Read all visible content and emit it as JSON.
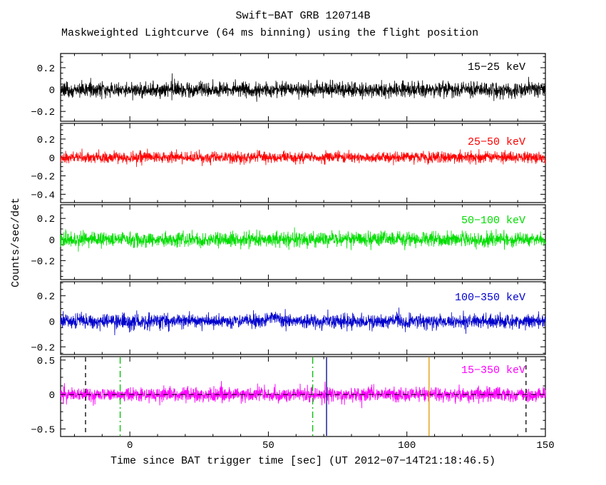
{
  "chart_data": {
    "type": "line",
    "title": "Swift−BAT GRB 120714B",
    "subtitle": "Maskweighted Lightcurve (64 ms binning) using the flight position",
    "xlabel": "Time since BAT trigger time [sec] (UT 2012−07−14T21:18:46.5)",
    "ylabel": "Counts/sec/det",
    "x_range": [
      -25,
      150
    ],
    "x_ticks": [
      0,
      50,
      100,
      150
    ],
    "x_minor_step": 10,
    "bin_seconds": 0.064,
    "grid": false,
    "legend_position": "inside-right-per-panel",
    "panels": [
      {
        "label": "15−25 keV",
        "color": "#000000",
        "ylim": [
          -0.29,
          0.33
        ],
        "yticks": [
          0.2,
          0,
          -0.2
        ],
        "mean": 0,
        "noise_sigma": 0.034
      },
      {
        "label": "25−50 keV",
        "color": "#ff0000",
        "ylim": [
          -0.49,
          0.37
        ],
        "yticks": [
          0.2,
          0,
          -0.2,
          -0.4
        ],
        "mean": 0,
        "noise_sigma": 0.03
      },
      {
        "label": "50−100 keV",
        "color": "#00dd00",
        "ylim": [
          -0.38,
          0.33
        ],
        "yticks": [
          0.2,
          0,
          -0.2
        ],
        "mean": 0,
        "noise_sigma": 0.034
      },
      {
        "label": "100−350 keV",
        "color": "#0000cc",
        "ylim": [
          -0.26,
          0.31
        ],
        "yticks": [
          0.2,
          0,
          -0.2
        ],
        "mean": 0,
        "noise_sigma": 0.028,
        "bump": {
          "x": 52,
          "amplitude": 0.045,
          "sigma": 1.5
        }
      },
      {
        "label": "15−350 keV",
        "color": "#ff00ff",
        "ylim": [
          -0.61,
          0.55
        ],
        "yticks": [
          0.5,
          0,
          -0.5
        ],
        "mean": 0,
        "noise_sigma": 0.05,
        "zero_line": {
          "style": "dashed",
          "color": "#000000"
        },
        "vlines": [
          {
            "x": -16,
            "color": "#000000",
            "style": "dashed"
          },
          {
            "x": -3.5,
            "color": "#00bb00",
            "style": "dashdot"
          },
          {
            "x": 66,
            "color": "#00bb00",
            "style": "dashdot"
          },
          {
            "x": 71,
            "color": "#000080",
            "style": "solid"
          },
          {
            "x": 108,
            "color": "#dd9900",
            "style": "solid"
          },
          {
            "x": 143,
            "color": "#000000",
            "style": "dashed"
          }
        ]
      }
    ]
  }
}
